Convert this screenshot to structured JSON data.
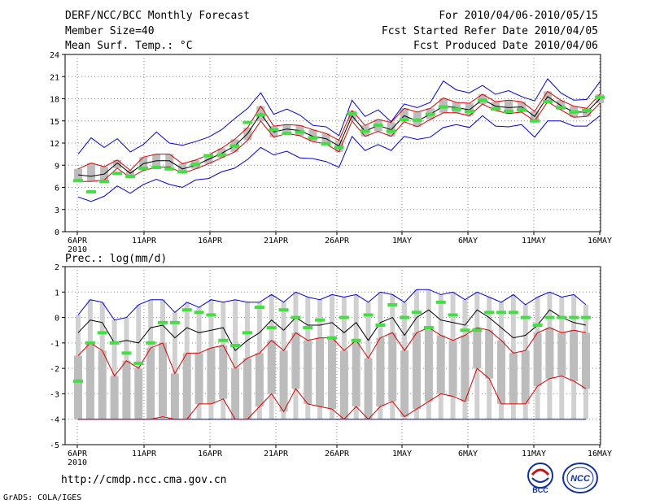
{
  "header": {
    "title": "DERF/NCC/BCC Monthly Forecast",
    "member_size": "Member Size=40",
    "variable1": "Mean Surf. Temp.: °C",
    "period": "For 2010/04/06-2010/05/15",
    "started": "Fcst Started Refer Date 2010/04/05",
    "produced": "Fcst Produced Date 2010/04/06"
  },
  "variable2": "Prec.: log(mm/d)",
  "footer": {
    "url": "http://cmdp.ncc.cma.gov.cn",
    "grads": "GrADS: COLA/IGES"
  },
  "logos": {
    "bcc": "BCC",
    "ncc": "NCC"
  },
  "colors": {
    "bar": "#d0d0d0",
    "bar_dark": "#bcbcbc",
    "mean": "#000000",
    "red": "#dd0000",
    "blue": "#0000dd",
    "obs": "#44dd44",
    "grid": "#888888"
  },
  "chart_data": [
    {
      "type": "line",
      "title": "Mean Surf. Temp.: °C",
      "x_tick_labels": [
        "6APR",
        "11APR",
        "16APR",
        "21APR",
        "26APR",
        "1MAY",
        "6MAY",
        "11MAY",
        "16MAY"
      ],
      "x_year_label": "2010",
      "ylim": [
        0,
        24
      ],
      "yticks": [
        0,
        3,
        6,
        9,
        12,
        15,
        18,
        21,
        24
      ],
      "series": [
        {
          "name": "ensemble mean",
          "values": [
            7.7,
            7.5,
            7.8,
            9.3,
            7.9,
            9.2,
            9.6,
            9.6,
            8.5,
            9.0,
            9.8,
            10.6,
            11.6,
            13.3,
            16.0,
            13.5,
            13.9,
            13.7,
            12.9,
            12.6,
            11.6,
            15.7,
            13.6,
            14.4,
            13.8,
            15.7,
            15.0,
            15.9,
            17.0,
            16.8,
            16.5,
            17.9,
            17.0,
            16.8,
            16.9,
            15.6,
            18.3,
            17.1,
            16.2,
            16.2,
            18.0
          ]
        },
        {
          "name": "upper spread",
          "values": [
            8.5,
            9.3,
            8.8,
            9.7,
            8.3,
            10.1,
            10.5,
            10.5,
            9.2,
            9.7,
            10.4,
            11.3,
            12.5,
            14.1,
            17.0,
            14.3,
            14.5,
            14.4,
            13.8,
            13.3,
            12.4,
            16.4,
            14.4,
            15.2,
            14.8,
            16.7,
            16.2,
            16.7,
            18.1,
            17.5,
            17.4,
            18.6,
            17.6,
            17.8,
            17.6,
            16.3,
            19.0,
            17.8,
            17.0,
            16.7,
            18.6
          ]
        },
        {
          "name": "lower spread",
          "values": [
            6.8,
            6.8,
            7.0,
            8.6,
            7.3,
            8.3,
            8.7,
            8.8,
            7.9,
            8.5,
            9.2,
            10.0,
            10.8,
            12.4,
            15.0,
            12.8,
            13.3,
            13.0,
            12.2,
            11.9,
            10.8,
            15.0,
            12.9,
            13.6,
            12.9,
            14.9,
            14.2,
            15.2,
            16.1,
            16.1,
            15.7,
            17.3,
            16.4,
            16.0,
            16.2,
            15.0,
            17.6,
            16.5,
            15.5,
            15.6,
            17.4
          ]
        },
        {
          "name": "ensemble max",
          "values": [
            10.5,
            12.7,
            11.4,
            12.6,
            10.8,
            11.8,
            13.5,
            12.0,
            11.7,
            12.2,
            12.8,
            13.8,
            15.3,
            16.7,
            18.8,
            15.9,
            16.6,
            15.8,
            14.4,
            14.2,
            13.0,
            17.8,
            15.6,
            16.5,
            14.9,
            17.3,
            16.8,
            17.5,
            20.4,
            19.2,
            18.8,
            19.8,
            18.6,
            19.1,
            18.3,
            17.7,
            20.7,
            18.8,
            17.8,
            17.9,
            20.3
          ]
        },
        {
          "name": "ensemble min",
          "values": [
            4.7,
            4.1,
            4.8,
            6.2,
            5.2,
            6.4,
            7.1,
            6.4,
            6.0,
            7.0,
            7.2,
            8.1,
            8.6,
            9.8,
            11.4,
            10.4,
            10.9,
            10.0,
            9.9,
            9.5,
            8.7,
            12.9,
            11.0,
            11.8,
            11.0,
            12.9,
            12.5,
            12.8,
            14.1,
            14.5,
            14.1,
            15.7,
            14.3,
            14.2,
            14.5,
            12.8,
            15.0,
            15.0,
            14.3,
            14.3,
            15.7
          ]
        },
        {
          "name": "observation",
          "values": [
            6.9,
            5.4,
            6.8,
            7.9,
            7.5,
            8.6,
            8.7,
            8.5,
            8.1,
            9.1,
            10.3,
            10.4,
            11.6,
            14.8,
            15.8,
            13.8,
            13.3,
            13.5,
            12.7,
            11.9,
            11.4,
            16.0,
            13.6,
            14.4,
            13.6,
            15.2,
            15.1,
            15.9,
            16.9,
            16.6,
            16.3,
            17.8,
            16.6,
            16.3,
            16.5,
            15.0,
            17.6,
            16.8,
            16.2,
            16.4,
            18.2
          ]
        }
      ]
    },
    {
      "type": "line",
      "title": "Prec.: log(mm/d)",
      "x_tick_labels": [
        "6APR",
        "11APR",
        "16APR",
        "21APR",
        "26APR",
        "1MAY",
        "6MAY",
        "11MAY",
        "16MAY"
      ],
      "x_year_label": "2010",
      "ylim": [
        -5,
        2
      ],
      "yticks": [
        -5,
        -4,
        -3,
        -2,
        -1,
        0,
        1,
        2
      ],
      "series": [
        {
          "name": "ensemble mean",
          "values": [
            -0.6,
            -0.1,
            -0.2,
            -1.0,
            -0.9,
            -1.0,
            -0.4,
            -0.3,
            -0.8,
            -0.4,
            -0.6,
            -0.5,
            -0.4,
            -1.3,
            -0.9,
            -0.6,
            -0.1,
            -0.5,
            0.0,
            -0.3,
            -0.3,
            -0.2,
            -0.6,
            -0.2,
            -0.9,
            -0.2,
            0.0,
            -0.7,
            0.0,
            0.3,
            -0.1,
            -0.2,
            -0.3,
            0.3,
            0.0,
            -0.4,
            -0.8,
            -0.7,
            -0.3,
            0.3,
            0.0,
            -0.2,
            -0.3
          ]
        },
        {
          "name": "upper range",
          "values": [
            0.1,
            0.7,
            0.6,
            -0.1,
            0.0,
            0.5,
            0.7,
            0.7,
            0.2,
            0.6,
            0.4,
            0.7,
            0.6,
            0.7,
            0.6,
            0.6,
            0.9,
            0.6,
            1.0,
            0.8,
            0.7,
            0.9,
            0.8,
            0.9,
            0.6,
            1.0,
            0.9,
            0.6,
            1.1,
            1.1,
            0.9,
            1.0,
            0.7,
            1.0,
            0.8,
            0.6,
            0.9,
            0.5,
            0.8,
            1.0,
            0.8,
            0.9,
            0.5
          ]
        },
        {
          "name": "upper red",
          "values": [
            -1.5,
            -1.0,
            -1.3,
            -2.3,
            -1.7,
            -2.0,
            -1.2,
            -1.0,
            -2.2,
            -1.4,
            -1.4,
            -1.2,
            -1.1,
            -2.0,
            -1.6,
            -1.4,
            -0.9,
            -1.3,
            -0.6,
            -0.9,
            -0.8,
            -0.8,
            -1.3,
            -0.9,
            -1.6,
            -0.8,
            -0.6,
            -1.3,
            -0.6,
            -0.4,
            -0.7,
            -0.9,
            -0.7,
            -0.4,
            -0.5,
            -0.9,
            -1.4,
            -1.3,
            -0.6,
            -0.4,
            -0.6,
            -0.5,
            -0.6
          ]
        },
        {
          "name": "lower red",
          "values": [
            -4.0,
            -4.0,
            -4.0,
            -4.0,
            -4.0,
            -4.0,
            -4.0,
            -3.9,
            -4.0,
            -4.0,
            -3.4,
            -3.4,
            -3.2,
            -4.0,
            -4.0,
            -3.5,
            -3.0,
            -3.7,
            -2.8,
            -3.4,
            -3.5,
            -3.6,
            -4.0,
            -3.5,
            -4.0,
            -3.5,
            -3.3,
            -3.9,
            -3.6,
            -3.3,
            -3.0,
            -3.1,
            -3.3,
            -2.0,
            -2.4,
            -3.4,
            -3.4,
            -3.4,
            -2.7,
            -2.4,
            -2.3,
            -2.5,
            -2.8
          ]
        },
        {
          "name": "lower floor",
          "values": [
            -4.0,
            -4.0,
            -4.0,
            -4.0,
            -4.0,
            -4.0,
            -4.0,
            -4.0,
            -4.0,
            -4.0,
            -4.0,
            -4.0,
            -4.0,
            -4.0,
            -4.0,
            -4.0,
            -4.0,
            -4.0,
            -4.0,
            -4.0,
            -4.0,
            -4.0,
            -4.0,
            -4.0,
            -4.0,
            -4.0,
            -4.0,
            -4.0,
            -4.0,
            -4.0,
            -4.0,
            -4.0,
            -4.0,
            -4.0,
            -4.0,
            -4.0,
            -4.0,
            -4.0,
            -4.0,
            -4.0,
            -4.0,
            -4.0,
            -4.0
          ]
        },
        {
          "name": "observation",
          "values": [
            -2.5,
            -1.0,
            -0.6,
            -1.0,
            -1.4,
            -1.8,
            -1.0,
            -0.2,
            -0.2,
            0.3,
            0.2,
            0.1,
            -0.9,
            -1.1,
            -0.6,
            0.4,
            -0.4,
            0.3,
            0.0,
            -0.4,
            -0.1,
            -0.8,
            0.0,
            -0.9,
            0.1,
            -0.3,
            0.5,
            0.0,
            0.2,
            -0.4,
            0.6,
            0.1,
            -0.5,
            -0.5,
            0.2,
            0.2,
            0.2,
            0.0,
            -0.3,
            0.0,
            0.0,
            0.0,
            0.0
          ]
        }
      ]
    }
  ]
}
